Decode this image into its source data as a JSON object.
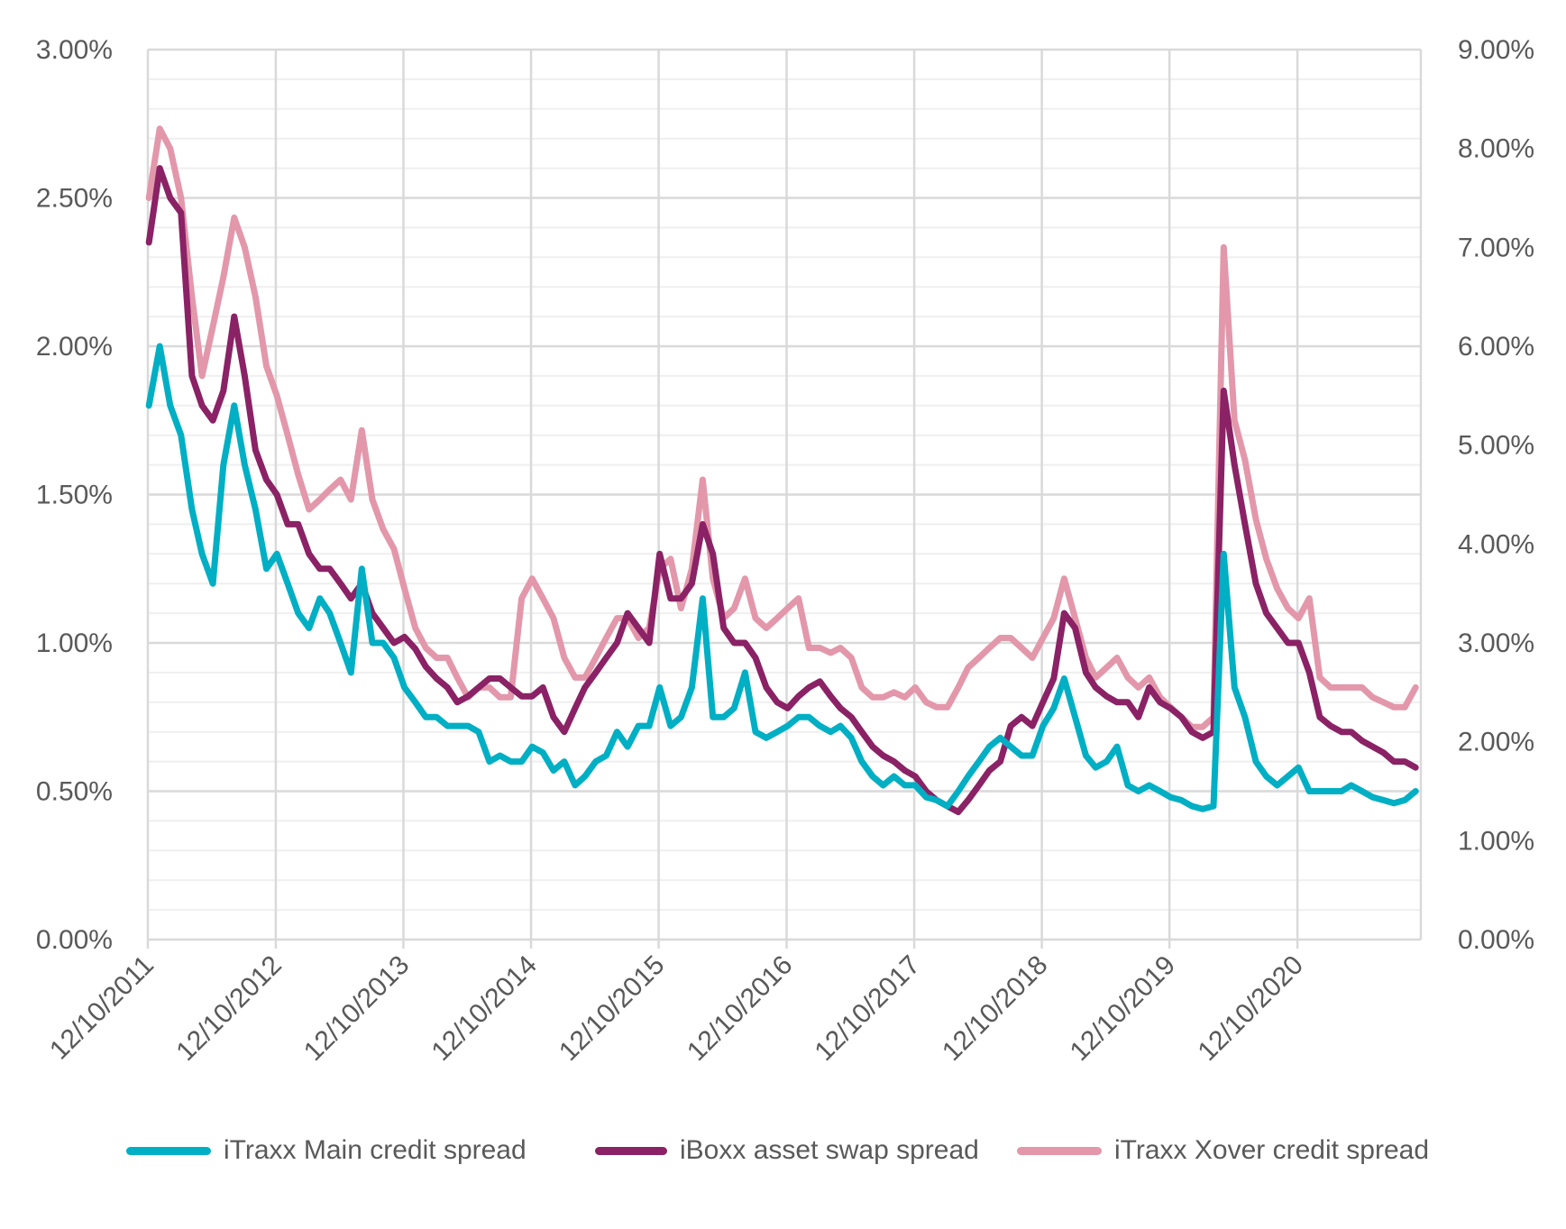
{
  "chart_data": {
    "type": "line",
    "title": "",
    "xlabel": "",
    "ylabel_left": "",
    "ylabel_right": "",
    "xlim": [
      "2011-10-12",
      "2021-09-30"
    ],
    "ylim_left": [
      0,
      3.0
    ],
    "ylim_right": [
      0,
      9.0
    ],
    "grid": true,
    "legend_position": "bottom",
    "x_ticks": [
      {
        "date": "2011-10-12",
        "label": "12/10/2011"
      },
      {
        "date": "2012-10-12",
        "label": "12/10/2012"
      },
      {
        "date": "2013-10-12",
        "label": "12/10/2013"
      },
      {
        "date": "2014-10-12",
        "label": "12/10/2014"
      },
      {
        "date": "2015-10-12",
        "label": "12/10/2015"
      },
      {
        "date": "2016-10-12",
        "label": "12/10/2016"
      },
      {
        "date": "2017-10-12",
        "label": "12/10/2017"
      },
      {
        "date": "2018-10-12",
        "label": "12/10/2018"
      },
      {
        "date": "2019-10-12",
        "label": "12/10/2019"
      },
      {
        "date": "2020-10-12",
        "label": "12/10/2020"
      }
    ],
    "y_ticks_left": [
      {
        "value": 0,
        "label": "0.00%"
      },
      {
        "value": 0.5,
        "label": "0.50%"
      },
      {
        "value": 1.0,
        "label": "1.00%"
      },
      {
        "value": 1.5,
        "label": "1.50%"
      },
      {
        "value": 2.0,
        "label": "2.00%"
      },
      {
        "value": 2.5,
        "label": "2.50%"
      },
      {
        "value": 3.0,
        "label": "3.00%"
      }
    ],
    "y_ticks_right": [
      {
        "value": 0,
        "label": "0.00%"
      },
      {
        "value": 1,
        "label": "1.00%"
      },
      {
        "value": 2,
        "label": "2.00%"
      },
      {
        "value": 3,
        "label": "3.00%"
      },
      {
        "value": 4,
        "label": "4.00%"
      },
      {
        "value": 5,
        "label": "5.00%"
      },
      {
        "value": 6,
        "label": "6.00%"
      },
      {
        "value": 7,
        "label": "7.00%"
      },
      {
        "value": 8,
        "label": "8.00%"
      },
      {
        "value": 9,
        "label": "9.00%"
      }
    ],
    "dates": [
      "2011-10",
      "2011-11",
      "2011-12",
      "2012-01",
      "2012-02",
      "2012-03",
      "2012-04",
      "2012-05",
      "2012-06",
      "2012-07",
      "2012-08",
      "2012-09",
      "2012-10",
      "2012-11",
      "2012-12",
      "2013-01",
      "2013-02",
      "2013-03",
      "2013-04",
      "2013-05",
      "2013-06",
      "2013-07",
      "2013-08",
      "2013-09",
      "2013-10",
      "2013-11",
      "2013-12",
      "2014-01",
      "2014-02",
      "2014-03",
      "2014-04",
      "2014-05",
      "2014-06",
      "2014-07",
      "2014-08",
      "2014-09",
      "2014-10",
      "2014-11",
      "2014-12",
      "2015-01",
      "2015-02",
      "2015-03",
      "2015-04",
      "2015-05",
      "2015-06",
      "2015-07",
      "2015-08",
      "2015-09",
      "2015-10",
      "2015-11",
      "2015-12",
      "2016-01",
      "2016-02",
      "2016-03",
      "2016-04",
      "2016-05",
      "2016-06",
      "2016-07",
      "2016-08",
      "2016-09",
      "2016-10",
      "2016-11",
      "2016-12",
      "2017-01",
      "2017-02",
      "2017-03",
      "2017-04",
      "2017-05",
      "2017-06",
      "2017-07",
      "2017-08",
      "2017-09",
      "2017-10",
      "2017-11",
      "2017-12",
      "2018-01",
      "2018-02",
      "2018-03",
      "2018-04",
      "2018-05",
      "2018-06",
      "2018-07",
      "2018-08",
      "2018-09",
      "2018-10",
      "2018-11",
      "2018-12",
      "2019-01",
      "2019-02",
      "2019-03",
      "2019-04",
      "2019-05",
      "2019-06",
      "2019-07",
      "2019-08",
      "2019-09",
      "2019-10",
      "2019-11",
      "2019-12",
      "2020-01",
      "2020-02",
      "2020-03",
      "2020-04",
      "2020-05",
      "2020-06",
      "2020-07",
      "2020-08",
      "2020-09",
      "2020-10",
      "2020-11",
      "2020-12",
      "2021-01",
      "2021-02",
      "2021-03",
      "2021-04",
      "2021-05",
      "2021-06",
      "2021-07",
      "2021-08",
      "2021-09"
    ],
    "series": [
      {
        "name": "iTraxx Main credit spread",
        "axis": "left",
        "color": "#00AFC4",
        "values": [
          1.8,
          2.0,
          1.8,
          1.7,
          1.45,
          1.3,
          1.2,
          1.6,
          1.8,
          1.6,
          1.45,
          1.25,
          1.3,
          1.2,
          1.1,
          1.05,
          1.15,
          1.1,
          1.0,
          0.9,
          1.25,
          1.0,
          1.0,
          0.95,
          0.85,
          0.8,
          0.75,
          0.75,
          0.72,
          0.72,
          0.72,
          0.7,
          0.6,
          0.62,
          0.6,
          0.6,
          0.65,
          0.63,
          0.57,
          0.6,
          0.52,
          0.55,
          0.6,
          0.62,
          0.7,
          0.65,
          0.72,
          0.72,
          0.85,
          0.72,
          0.75,
          0.85,
          1.15,
          0.75,
          0.75,
          0.78,
          0.9,
          0.7,
          0.68,
          0.7,
          0.72,
          0.75,
          0.75,
          0.72,
          0.7,
          0.72,
          0.68,
          0.6,
          0.55,
          0.52,
          0.55,
          0.52,
          0.52,
          0.48,
          0.47,
          0.45,
          0.5,
          0.55,
          0.6,
          0.65,
          0.68,
          0.65,
          0.62,
          0.62,
          0.72,
          0.78,
          0.88,
          0.75,
          0.62,
          0.58,
          0.6,
          0.65,
          0.52,
          0.5,
          0.52,
          0.5,
          0.48,
          0.47,
          0.45,
          0.44,
          0.45,
          1.3,
          0.85,
          0.75,
          0.6,
          0.55,
          0.52,
          0.55,
          0.58,
          0.5,
          0.5,
          0.5,
          0.5,
          0.52,
          0.5,
          0.48,
          0.47,
          0.46,
          0.47,
          0.5
        ]
      },
      {
        "name": "iBoxx asset swap spread",
        "axis": "left",
        "color": "#8A2265",
        "values": [
          2.35,
          2.6,
          2.5,
          2.45,
          1.9,
          1.8,
          1.75,
          1.85,
          2.1,
          1.9,
          1.65,
          1.55,
          1.5,
          1.4,
          1.4,
          1.3,
          1.25,
          1.25,
          1.2,
          1.15,
          1.2,
          1.1,
          1.05,
          1.0,
          1.02,
          0.98,
          0.92,
          0.88,
          0.85,
          0.8,
          0.82,
          0.85,
          0.88,
          0.88,
          0.85,
          0.82,
          0.82,
          0.85,
          0.75,
          0.7,
          0.78,
          0.85,
          0.9,
          0.95,
          1.0,
          1.1,
          1.05,
          1.0,
          1.3,
          1.15,
          1.15,
          1.2,
          1.4,
          1.3,
          1.05,
          1.0,
          1.0,
          0.95,
          0.85,
          0.8,
          0.78,
          0.82,
          0.85,
          0.87,
          0.82,
          0.78,
          0.75,
          0.7,
          0.65,
          0.62,
          0.6,
          0.57,
          0.55,
          0.5,
          0.47,
          0.45,
          0.43,
          0.47,
          0.52,
          0.57,
          0.6,
          0.72,
          0.75,
          0.72,
          0.8,
          0.88,
          1.1,
          1.05,
          0.9,
          0.85,
          0.82,
          0.8,
          0.8,
          0.75,
          0.85,
          0.8,
          0.78,
          0.75,
          0.7,
          0.68,
          0.7,
          1.85,
          1.6,
          1.4,
          1.2,
          1.1,
          1.05,
          1.0,
          1.0,
          0.9,
          0.75,
          0.72,
          0.7,
          0.7,
          0.67,
          0.65,
          0.63,
          0.6,
          0.6,
          0.58
        ]
      },
      {
        "name": "iTraxx Xover credit spread",
        "axis": "right",
        "color": "#E397AB",
        "values": [
          7.5,
          8.2,
          8.0,
          7.5,
          6.5,
          5.7,
          6.2,
          6.7,
          7.3,
          7.0,
          6.5,
          5.8,
          5.5,
          5.1,
          4.7,
          4.35,
          4.45,
          4.55,
          4.65,
          4.45,
          5.15,
          4.45,
          4.15,
          3.95,
          3.55,
          3.15,
          2.95,
          2.85,
          2.85,
          2.65,
          2.45,
          2.55,
          2.55,
          2.45,
          2.45,
          3.45,
          3.65,
          3.45,
          3.25,
          2.85,
          2.65,
          2.65,
          2.85,
          3.05,
          3.25,
          3.25,
          3.05,
          3.15,
          3.75,
          3.85,
          3.35,
          3.75,
          4.65,
          3.65,
          3.25,
          3.35,
          3.65,
          3.25,
          3.15,
          3.25,
          3.35,
          3.45,
          2.95,
          2.95,
          2.9,
          2.95,
          2.85,
          2.55,
          2.45,
          2.45,
          2.5,
          2.45,
          2.55,
          2.4,
          2.35,
          2.35,
          2.55,
          2.75,
          2.85,
          2.95,
          3.05,
          3.05,
          2.95,
          2.85,
          3.05,
          3.25,
          3.65,
          3.25,
          2.85,
          2.65,
          2.75,
          2.85,
          2.65,
          2.55,
          2.65,
          2.45,
          2.35,
          2.25,
          2.15,
          2.15,
          2.25,
          7.0,
          5.25,
          4.85,
          4.25,
          3.85,
          3.55,
          3.35,
          3.25,
          3.45,
          2.65,
          2.55,
          2.55,
          2.55,
          2.55,
          2.45,
          2.4,
          2.35,
          2.35,
          2.55
        ]
      }
    ]
  },
  "legend": {
    "items": [
      {
        "label": "iTraxx Main credit spread",
        "color": "#00AFC4"
      },
      {
        "label": "iBoxx asset swap spread",
        "color": "#8A2265"
      },
      {
        "label": "iTraxx Xover credit spread",
        "color": "#E397AB"
      }
    ]
  }
}
